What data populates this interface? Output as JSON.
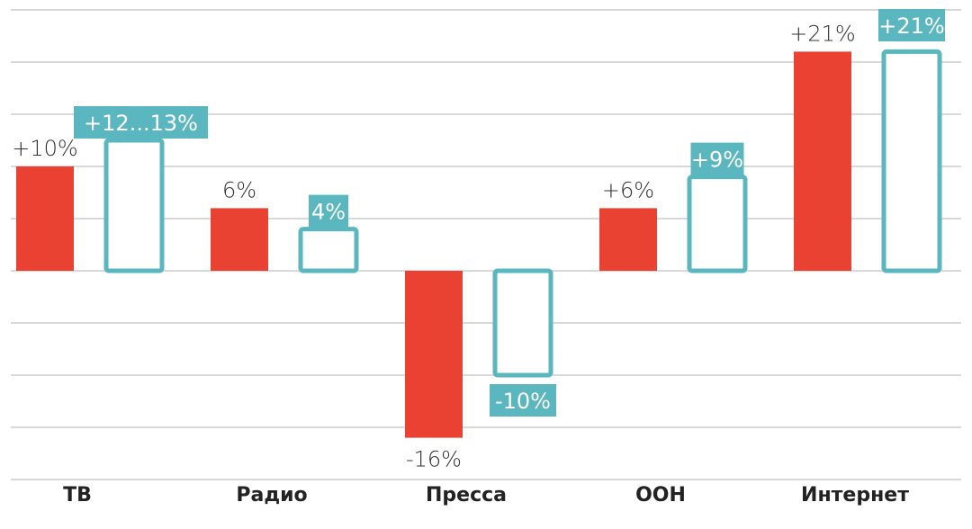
{
  "chart_data": {
    "type": "bar",
    "categories": [
      "ТВ",
      "Радио",
      "Пресса",
      "OOH",
      "Интернет"
    ],
    "series": [
      {
        "values": [
          10,
          6,
          -16,
          6,
          21
        ],
        "labels": [
          "+10%",
          "6%",
          "-16%",
          "+6%",
          "+21%"
        ],
        "color": "#e94132",
        "style": "filled"
      },
      {
        "values": [
          12.5,
          4,
          -10,
          9,
          21
        ],
        "labels": [
          "+12...13%",
          "4%",
          "-10%",
          "+9%",
          "+21%"
        ],
        "color": "#5bb7bf",
        "style": "outline"
      }
    ],
    "ylim": [
      -21,
      25
    ],
    "grid": true,
    "title": "",
    "xlabel": "",
    "ylabel": ""
  }
}
